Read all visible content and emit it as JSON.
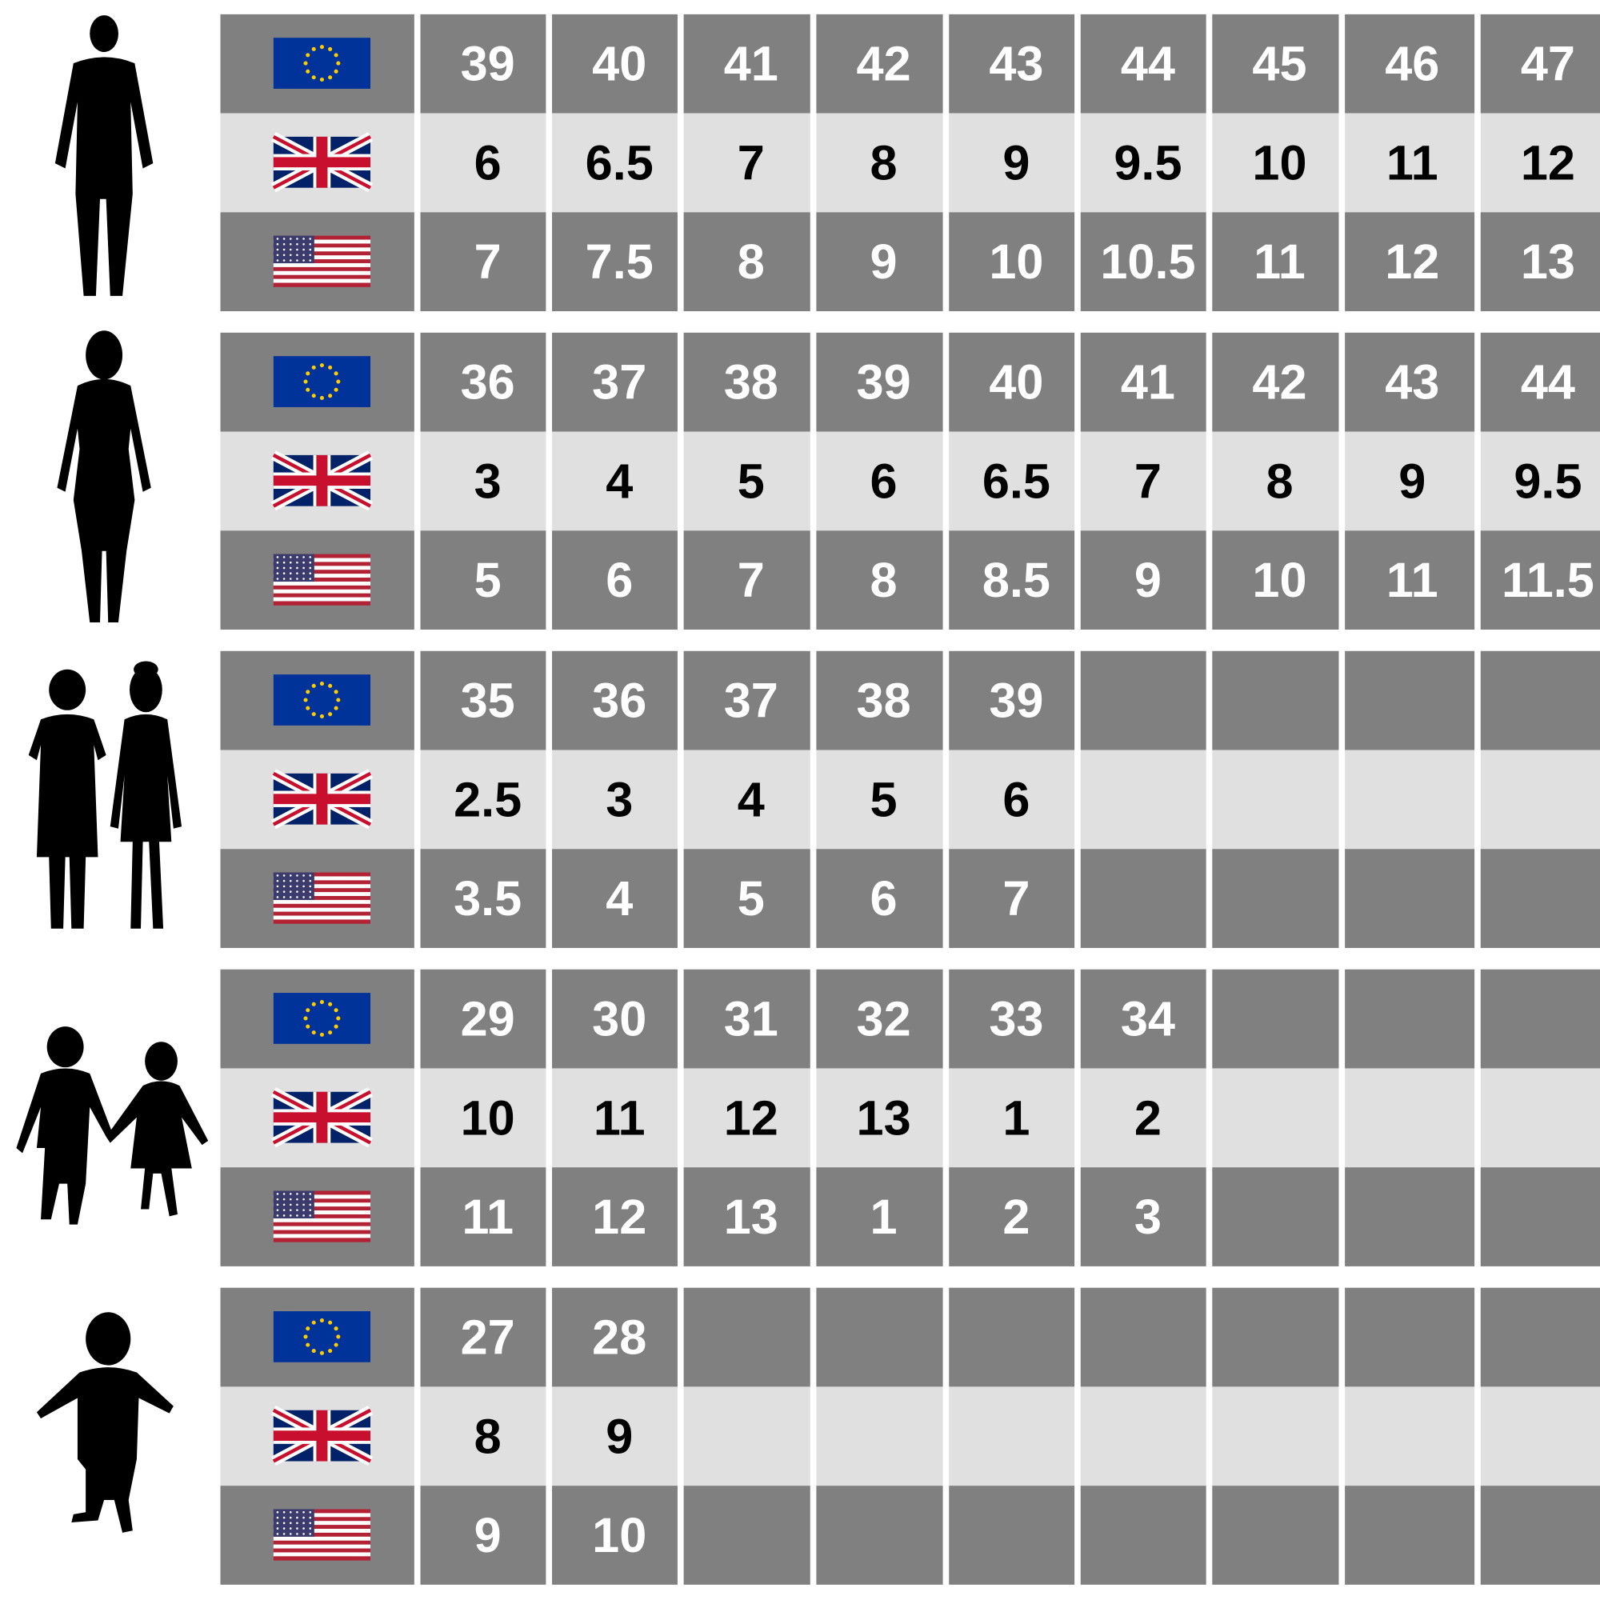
{
  "groups": [
    {
      "eu": [
        39,
        40,
        41,
        42,
        43,
        44,
        45,
        46,
        47
      ],
      "uk": [
        6,
        6.5,
        7,
        8,
        9,
        9.5,
        10,
        11,
        12
      ],
      "us": [
        7,
        7.5,
        8,
        9,
        10,
        10.5,
        11,
        12,
        13
      ]
    },
    {
      "eu": [
        36,
        37,
        38,
        39,
        40,
        41,
        42,
        43,
        44
      ],
      "uk": [
        3,
        4,
        5,
        6,
        6.5,
        7,
        8,
        9,
        9.5
      ],
      "us": [
        5,
        6,
        7,
        8,
        8.5,
        9,
        10,
        11,
        11.5
      ]
    },
    {
      "eu": [
        35,
        36,
        37,
        38,
        39
      ],
      "uk": [
        2.5,
        3,
        4,
        5,
        6
      ],
      "us": [
        3.5,
        4,
        5,
        6,
        7
      ]
    },
    {
      "eu": [
        29,
        30,
        31,
        32,
        33,
        34
      ],
      "uk": [
        10,
        11,
        12,
        13,
        1,
        2
      ],
      "us": [
        11,
        12,
        13,
        1,
        2,
        3
      ]
    },
    {
      "eu": [
        27,
        28
      ],
      "uk": [
        8,
        9
      ],
      "us": [
        9,
        10
      ]
    }
  ]
}
